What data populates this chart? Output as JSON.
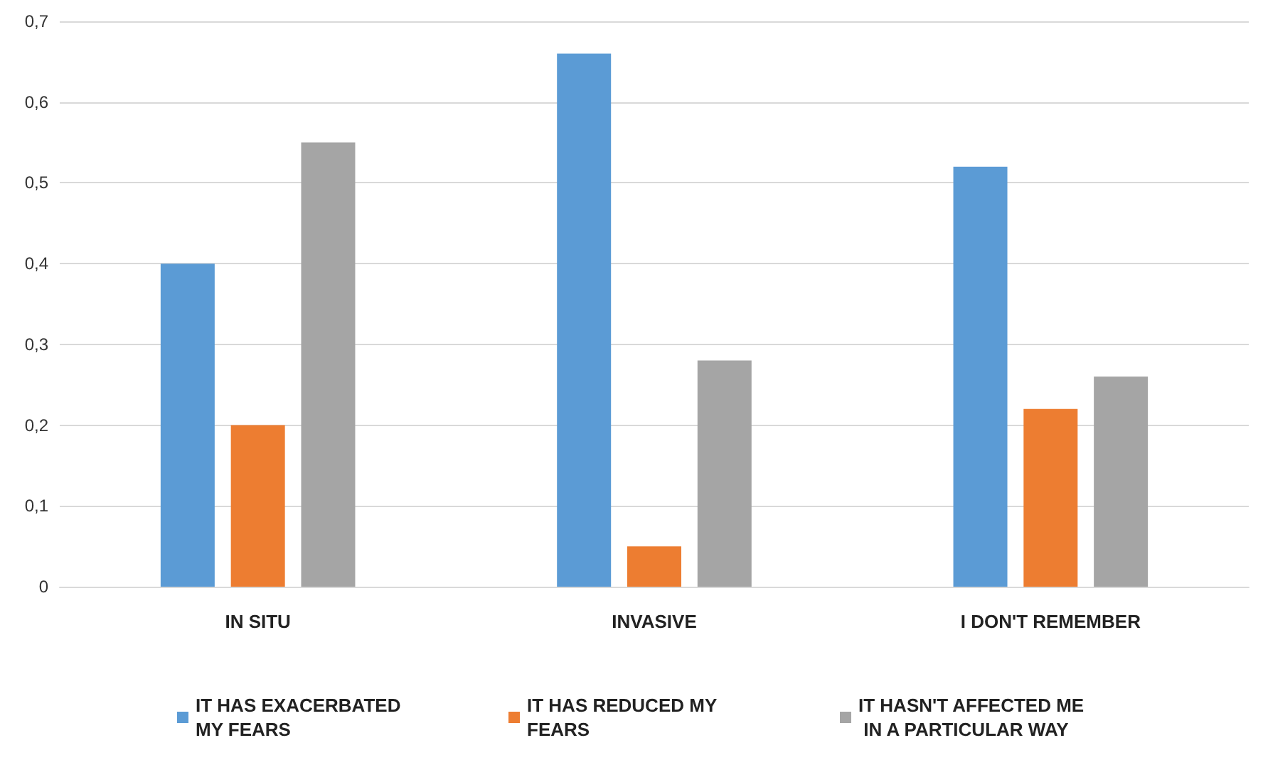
{
  "chart_data": {
    "type": "bar",
    "categories": [
      "IN SITU",
      "INVASIVE",
      "I DON'T REMEMBER"
    ],
    "series": [
      {
        "name": "IT HAS EXACERBATED MY FEARS",
        "color": "#5b9bd5",
        "values": [
          0.4,
          0.66,
          0.52
        ]
      },
      {
        "name": "IT HAS REDUCED MY FEARS",
        "color": "#ed7d31",
        "values": [
          0.2,
          0.05,
          0.22
        ]
      },
      {
        "name": "IT HASN'T AFFECTED ME IN A PARTICULAR WAY",
        "color": "#a5a5a5",
        "values": [
          0.55,
          0.28,
          0.26
        ]
      }
    ],
    "ylim": [
      0,
      0.7
    ],
    "yticks": [
      0,
      {
        "value": 0.1,
        "label": "0,1"
      },
      {
        "value": 0.2,
        "label": "0,2"
      },
      {
        "value": 0.3,
        "label": "0,3"
      },
      {
        "value": 0.4,
        "label": "0,4"
      },
      {
        "value": 0.5,
        "label": "0,5"
      },
      {
        "value": 0.6,
        "label": "0,6"
      },
      {
        "value": 0.7,
        "label": "0,7"
      }
    ],
    "grid": "y",
    "legend": "bottom"
  }
}
